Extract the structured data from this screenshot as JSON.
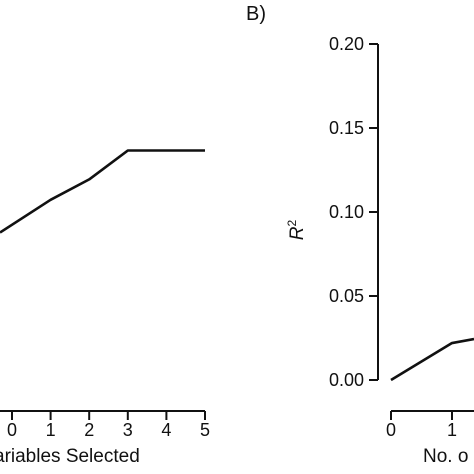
{
  "chart_data": [
    {
      "type": "line",
      "x": [
        0,
        1,
        2,
        3,
        4,
        5
      ],
      "values": [
        null,
        0.106,
        0.118,
        0.135,
        0.135,
        0.135
      ],
      "xlabel": "ariables Selected",
      "ylabel": "",
      "xticks": [
        "0",
        "1",
        "2",
        "3",
        "4",
        "5"
      ],
      "xlim": [
        0,
        5
      ],
      "ylim": [
        0,
        0.2
      ],
      "grid": false,
      "line_color": "#111111"
    },
    {
      "type": "line",
      "panel_label": "B)",
      "x": [
        0,
        1
      ],
      "values": [
        0.0,
        0.022
      ],
      "xlabel": "No. o",
      "ylabel": "R",
      "ylabel_superscript": "2",
      "yticks": [
        "0.00",
        "0.05",
        "0.10",
        "0.15",
        "0.20"
      ],
      "xticks": [
        "0",
        "1"
      ],
      "ylim": [
        0,
        0.2
      ],
      "grid": false,
      "line_color": "#111111"
    }
  ]
}
